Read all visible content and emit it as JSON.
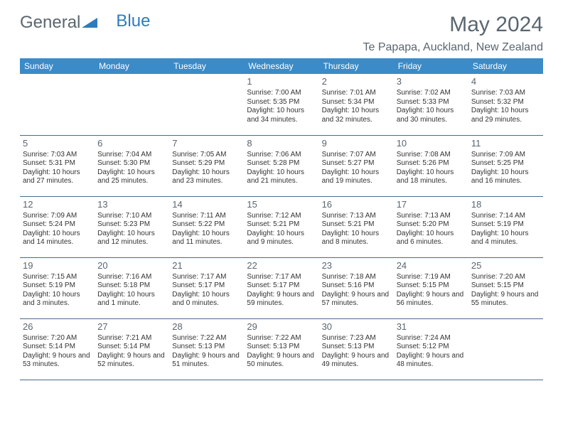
{
  "logo": {
    "text1": "General",
    "text2": "Blue"
  },
  "title": "May 2024",
  "location": "Te Papapa, Auckland, New Zealand",
  "colors": {
    "header_bg": "#3b8bc8",
    "header_text": "#ffffff",
    "border": "#4a6a88",
    "title_text": "#5a6670",
    "body_text": "#333333",
    "logo_blue": "#2f7bbf",
    "background": "#ffffff"
  },
  "daynames": [
    "Sunday",
    "Monday",
    "Tuesday",
    "Wednesday",
    "Thursday",
    "Friday",
    "Saturday"
  ],
  "weeks": [
    [
      {
        "n": "",
        "sr": "",
        "ss": "",
        "dl": ""
      },
      {
        "n": "",
        "sr": "",
        "ss": "",
        "dl": ""
      },
      {
        "n": "",
        "sr": "",
        "ss": "",
        "dl": ""
      },
      {
        "n": "1",
        "sr": "Sunrise: 7:00 AM",
        "ss": "Sunset: 5:35 PM",
        "dl": "Daylight: 10 hours and 34 minutes."
      },
      {
        "n": "2",
        "sr": "Sunrise: 7:01 AM",
        "ss": "Sunset: 5:34 PM",
        "dl": "Daylight: 10 hours and 32 minutes."
      },
      {
        "n": "3",
        "sr": "Sunrise: 7:02 AM",
        "ss": "Sunset: 5:33 PM",
        "dl": "Daylight: 10 hours and 30 minutes."
      },
      {
        "n": "4",
        "sr": "Sunrise: 7:03 AM",
        "ss": "Sunset: 5:32 PM",
        "dl": "Daylight: 10 hours and 29 minutes."
      }
    ],
    [
      {
        "n": "5",
        "sr": "Sunrise: 7:03 AM",
        "ss": "Sunset: 5:31 PM",
        "dl": "Daylight: 10 hours and 27 minutes."
      },
      {
        "n": "6",
        "sr": "Sunrise: 7:04 AM",
        "ss": "Sunset: 5:30 PM",
        "dl": "Daylight: 10 hours and 25 minutes."
      },
      {
        "n": "7",
        "sr": "Sunrise: 7:05 AM",
        "ss": "Sunset: 5:29 PM",
        "dl": "Daylight: 10 hours and 23 minutes."
      },
      {
        "n": "8",
        "sr": "Sunrise: 7:06 AM",
        "ss": "Sunset: 5:28 PM",
        "dl": "Daylight: 10 hours and 21 minutes."
      },
      {
        "n": "9",
        "sr": "Sunrise: 7:07 AM",
        "ss": "Sunset: 5:27 PM",
        "dl": "Daylight: 10 hours and 19 minutes."
      },
      {
        "n": "10",
        "sr": "Sunrise: 7:08 AM",
        "ss": "Sunset: 5:26 PM",
        "dl": "Daylight: 10 hours and 18 minutes."
      },
      {
        "n": "11",
        "sr": "Sunrise: 7:09 AM",
        "ss": "Sunset: 5:25 PM",
        "dl": "Daylight: 10 hours and 16 minutes."
      }
    ],
    [
      {
        "n": "12",
        "sr": "Sunrise: 7:09 AM",
        "ss": "Sunset: 5:24 PM",
        "dl": "Daylight: 10 hours and 14 minutes."
      },
      {
        "n": "13",
        "sr": "Sunrise: 7:10 AM",
        "ss": "Sunset: 5:23 PM",
        "dl": "Daylight: 10 hours and 12 minutes."
      },
      {
        "n": "14",
        "sr": "Sunrise: 7:11 AM",
        "ss": "Sunset: 5:22 PM",
        "dl": "Daylight: 10 hours and 11 minutes."
      },
      {
        "n": "15",
        "sr": "Sunrise: 7:12 AM",
        "ss": "Sunset: 5:21 PM",
        "dl": "Daylight: 10 hours and 9 minutes."
      },
      {
        "n": "16",
        "sr": "Sunrise: 7:13 AM",
        "ss": "Sunset: 5:21 PM",
        "dl": "Daylight: 10 hours and 8 minutes."
      },
      {
        "n": "17",
        "sr": "Sunrise: 7:13 AM",
        "ss": "Sunset: 5:20 PM",
        "dl": "Daylight: 10 hours and 6 minutes."
      },
      {
        "n": "18",
        "sr": "Sunrise: 7:14 AM",
        "ss": "Sunset: 5:19 PM",
        "dl": "Daylight: 10 hours and 4 minutes."
      }
    ],
    [
      {
        "n": "19",
        "sr": "Sunrise: 7:15 AM",
        "ss": "Sunset: 5:19 PM",
        "dl": "Daylight: 10 hours and 3 minutes."
      },
      {
        "n": "20",
        "sr": "Sunrise: 7:16 AM",
        "ss": "Sunset: 5:18 PM",
        "dl": "Daylight: 10 hours and 1 minute."
      },
      {
        "n": "21",
        "sr": "Sunrise: 7:17 AM",
        "ss": "Sunset: 5:17 PM",
        "dl": "Daylight: 10 hours and 0 minutes."
      },
      {
        "n": "22",
        "sr": "Sunrise: 7:17 AM",
        "ss": "Sunset: 5:17 PM",
        "dl": "Daylight: 9 hours and 59 minutes."
      },
      {
        "n": "23",
        "sr": "Sunrise: 7:18 AM",
        "ss": "Sunset: 5:16 PM",
        "dl": "Daylight: 9 hours and 57 minutes."
      },
      {
        "n": "24",
        "sr": "Sunrise: 7:19 AM",
        "ss": "Sunset: 5:15 PM",
        "dl": "Daylight: 9 hours and 56 minutes."
      },
      {
        "n": "25",
        "sr": "Sunrise: 7:20 AM",
        "ss": "Sunset: 5:15 PM",
        "dl": "Daylight: 9 hours and 55 minutes."
      }
    ],
    [
      {
        "n": "26",
        "sr": "Sunrise: 7:20 AM",
        "ss": "Sunset: 5:14 PM",
        "dl": "Daylight: 9 hours and 53 minutes."
      },
      {
        "n": "27",
        "sr": "Sunrise: 7:21 AM",
        "ss": "Sunset: 5:14 PM",
        "dl": "Daylight: 9 hours and 52 minutes."
      },
      {
        "n": "28",
        "sr": "Sunrise: 7:22 AM",
        "ss": "Sunset: 5:13 PM",
        "dl": "Daylight: 9 hours and 51 minutes."
      },
      {
        "n": "29",
        "sr": "Sunrise: 7:22 AM",
        "ss": "Sunset: 5:13 PM",
        "dl": "Daylight: 9 hours and 50 minutes."
      },
      {
        "n": "30",
        "sr": "Sunrise: 7:23 AM",
        "ss": "Sunset: 5:13 PM",
        "dl": "Daylight: 9 hours and 49 minutes."
      },
      {
        "n": "31",
        "sr": "Sunrise: 7:24 AM",
        "ss": "Sunset: 5:12 PM",
        "dl": "Daylight: 9 hours and 48 minutes."
      },
      {
        "n": "",
        "sr": "",
        "ss": "",
        "dl": ""
      }
    ]
  ]
}
